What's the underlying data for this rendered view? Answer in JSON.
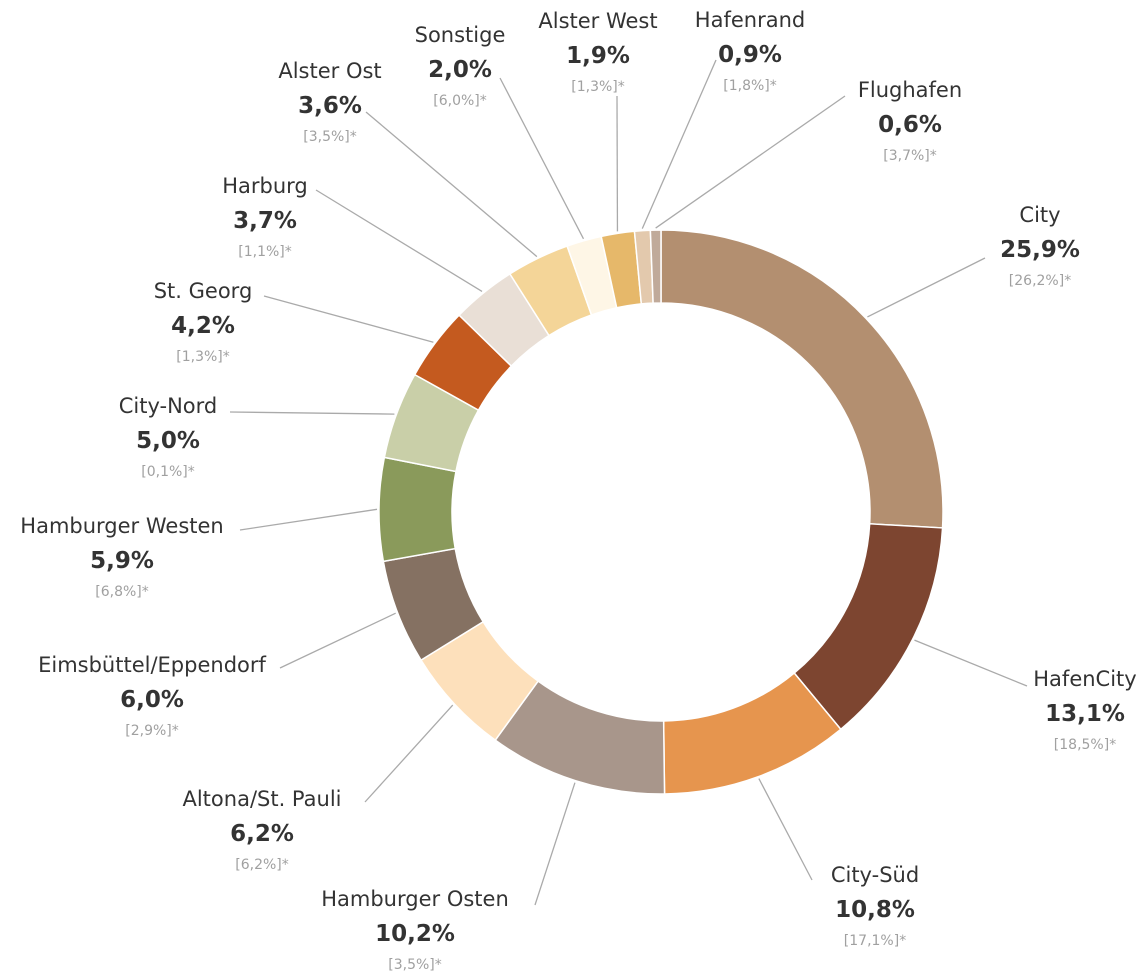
{
  "chart_data": {
    "type": "donut",
    "categories": [
      "City",
      "HafenCity",
      "City-Süd",
      "Hamburger Osten",
      "Altona/St. Pauli",
      "Eimsbüttel/Eppendorf",
      "Hamburger Westen",
      "City-Nord",
      "St. Georg",
      "Harburg",
      "Alster Ost",
      "Sonstige",
      "Alster West",
      "Hafenrand",
      "Flughafen"
    ],
    "values": [
      25.9,
      13.1,
      10.8,
      10.2,
      6.2,
      6.0,
      5.9,
      5.0,
      4.2,
      3.7,
      3.6,
      2.0,
      1.9,
      0.9,
      0.6
    ],
    "value_labels": [
      "25,9%",
      "13,1%",
      "10,8%",
      "10,2%",
      "6,2%",
      "6,0%",
      "5,9%",
      "5,0%",
      "4,2%",
      "3,7%",
      "3,6%",
      "2,0%",
      "1,9%",
      "0,9%",
      "0,6%"
    ],
    "comparison_labels": [
      "[26,2%]*",
      "[18,5%]*",
      "[17,1%]*",
      "[3,5%]*",
      "[6,2%]*",
      "[2,9%]*",
      "[6,8%]*",
      "[0,1%]*",
      "[1,3%]*",
      "[1,1%]*",
      "[3,5%]*",
      "[6,0%]*",
      "[1,3%]*",
      "[1,8%]*",
      "[3,7%]*"
    ],
    "colors": [
      "#b38f70",
      "#7d4530",
      "#e6954e",
      "#a8968b",
      "#fde0bb",
      "#857162",
      "#8a9a5b",
      "#c9cfa8",
      "#c45a1f",
      "#e9dfd6",
      "#f4d598",
      "#fef6e6",
      "#e6b86a",
      "#e3c9ad",
      "#c0aa9a"
    ]
  }
}
